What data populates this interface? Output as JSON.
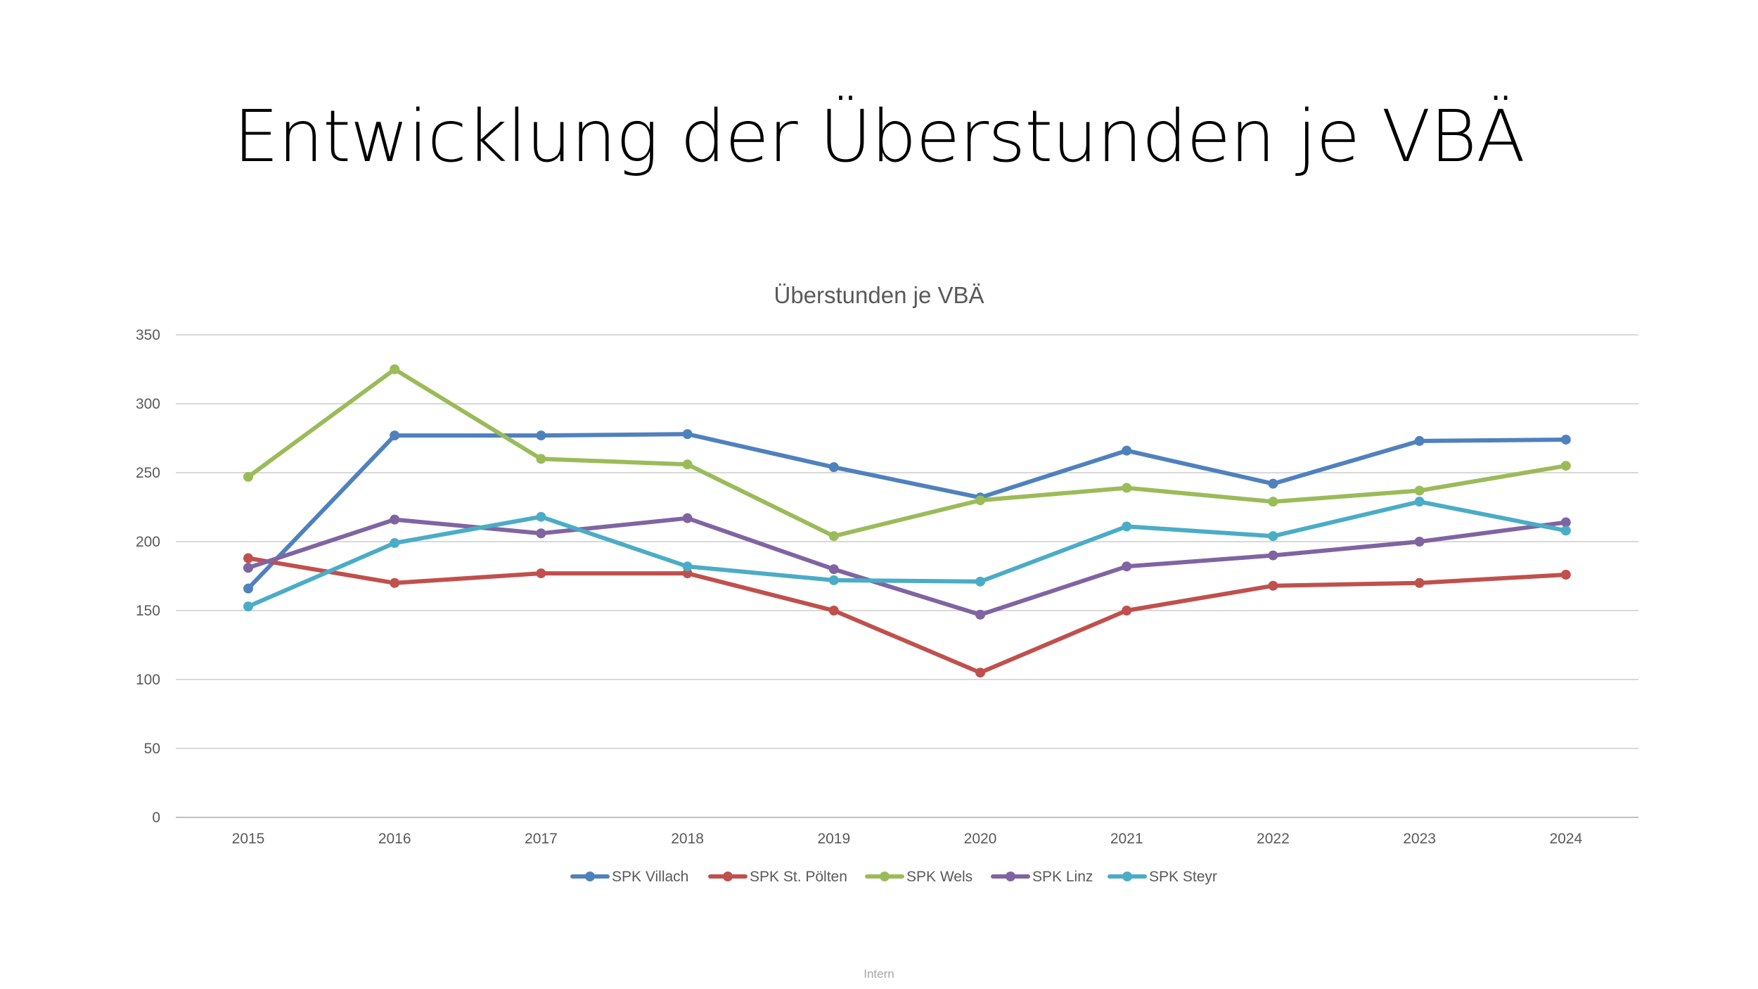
{
  "slide": {
    "title": "Entwicklung der Überstunden je VBÄ",
    "footer": "Intern"
  },
  "chart_data": {
    "type": "line",
    "title": "Überstunden je VBÄ",
    "xlabel": "",
    "ylabel": "",
    "ylim": [
      0,
      350
    ],
    "y_ticks": [
      0,
      50,
      100,
      150,
      200,
      250,
      300,
      350
    ],
    "grid": true,
    "legend_position": "bottom",
    "categories": [
      "2015",
      "2016",
      "2017",
      "2018",
      "2019",
      "2020",
      "2021",
      "2022",
      "2023",
      "2024"
    ],
    "series": [
      {
        "name": "SPK Villach",
        "color": "#4f81bd",
        "values": [
          166,
          277,
          277,
          278,
          254,
          232,
          266,
          242,
          273,
          274
        ]
      },
      {
        "name": "SPK St. Pölten",
        "color": "#c0504d",
        "values": [
          188,
          170,
          177,
          177,
          150,
          105,
          150,
          168,
          170,
          176
        ]
      },
      {
        "name": "SPK Wels",
        "color": "#9bbb59",
        "values": [
          247,
          325,
          260,
          256,
          204,
          230,
          239,
          229,
          237,
          255
        ]
      },
      {
        "name": "SPK Linz",
        "color": "#8064a2",
        "values": [
          181,
          216,
          206,
          217,
          180,
          147,
          182,
          190,
          200,
          214
        ]
      },
      {
        "name": "SPK Steyr",
        "color": "#4bacc6",
        "values": [
          153,
          199,
          218,
          182,
          172,
          171,
          211,
          204,
          229,
          208
        ]
      }
    ]
  }
}
